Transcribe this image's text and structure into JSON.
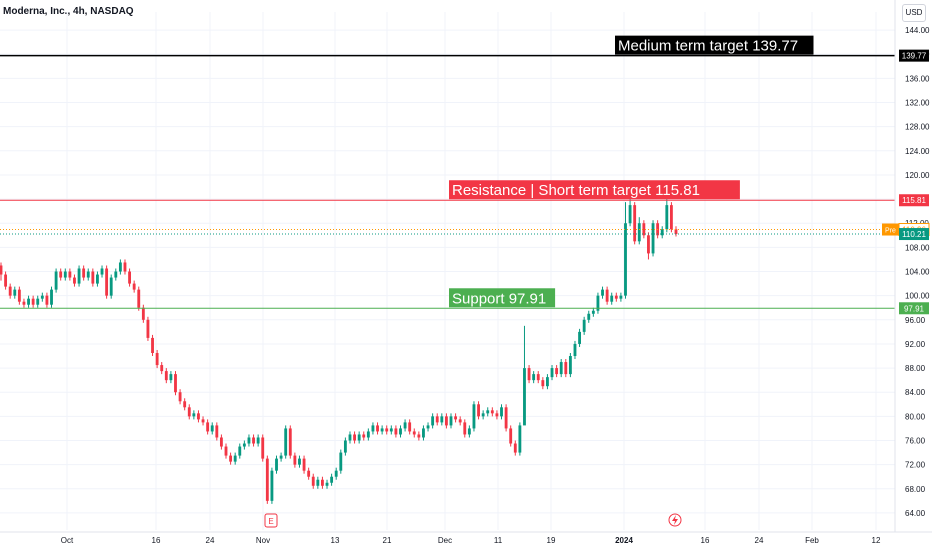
{
  "header": {
    "title": "Moderna, Inc., 4h, NASDAQ",
    "currency": "USD"
  },
  "colors": {
    "up": "#089981",
    "down": "#f23645",
    "resistance": "#f23645",
    "support": "#4caf50",
    "target": "#000000",
    "prepost": "#ff9800",
    "grid": "#f0f3fa"
  },
  "chart_data": {
    "type": "candlestick",
    "ylim": [
      62,
      147
    ],
    "y_ticks": [
      "144.00",
      "140.00",
      "136.00",
      "132.00",
      "128.00",
      "124.00",
      "120.00",
      "116.00",
      "112.00",
      "108.00",
      "104.00",
      "100.00",
      "96.00",
      "92.00",
      "88.00",
      "84.00",
      "80.00",
      "76.00",
      "72.00",
      "68.00",
      "64.00"
    ],
    "x_ticks": [
      "Oct",
      "16",
      "24",
      "Nov",
      "13",
      "21",
      "Dec",
      "11",
      "19",
      "2024",
      "16",
      "24",
      "Feb",
      "12"
    ],
    "levels": [
      {
        "name": "medium-target",
        "value": 139.77,
        "label": "Medium term target 139.77",
        "axis_label": "139.77"
      },
      {
        "name": "resistance",
        "value": 115.81,
        "label": "Resistance | Short term target 115.81",
        "axis_label": "115.81"
      },
      {
        "name": "support",
        "value": 97.91,
        "label": "Support 97.91",
        "axis_label": "97.91"
      }
    ],
    "last_price": {
      "value": 110.21,
      "label": "110.21"
    },
    "pre_price": {
      "value": 110.96,
      "label": "110.96",
      "tag": "Pre"
    },
    "candles": [
      [
        105,
        103.5,
        105.5,
        102.5
      ],
      [
        103.5,
        101.5,
        104,
        101
      ],
      [
        101.5,
        100,
        102,
        99.5
      ],
      [
        100,
        101,
        101.5,
        99.5
      ],
      [
        101,
        99,
        101.5,
        98.5
      ],
      [
        99,
        98.5,
        99.5,
        98
      ],
      [
        98.5,
        99.5,
        100,
        98
      ],
      [
        99.5,
        98.5,
        100,
        98
      ],
      [
        98.5,
        99.5,
        100,
        98
      ],
      [
        99.5,
        100,
        100.5,
        99
      ],
      [
        100,
        98.5,
        100.5,
        98
      ],
      [
        98.5,
        101,
        101.5,
        98
      ],
      [
        101,
        104,
        104.5,
        100.5
      ],
      [
        104,
        103,
        104.5,
        102.5
      ],
      [
        103,
        104,
        104.5,
        102.5
      ],
      [
        104,
        103,
        104.5,
        102.5
      ],
      [
        103,
        102,
        103.5,
        101.5
      ],
      [
        102,
        104.5,
        105,
        101.5
      ],
      [
        104.5,
        103,
        105,
        102.5
      ],
      [
        103,
        104,
        104.5,
        102.5
      ],
      [
        104,
        102,
        104.5,
        101.5
      ],
      [
        102,
        103.5,
        104,
        101.5
      ],
      [
        103.5,
        104.5,
        105,
        103
      ],
      [
        104.5,
        100,
        105,
        99.5
      ],
      [
        100,
        103,
        103.5,
        99.5
      ],
      [
        103,
        104,
        104.5,
        102.5
      ],
      [
        104,
        105.5,
        106,
        103.5
      ],
      [
        105.5,
        104,
        106,
        103.5
      ],
      [
        104,
        102,
        104.5,
        101.5
      ],
      [
        102,
        101,
        102.5,
        100.5
      ],
      [
        101,
        98,
        101.5,
        97.5
      ],
      [
        98,
        96,
        98.5,
        95.5
      ],
      [
        96,
        93,
        96.5,
        92.5
      ],
      [
        93,
        90.5,
        93.5,
        90
      ],
      [
        90.5,
        88.5,
        91,
        88
      ],
      [
        88.5,
        87.5,
        89,
        87
      ],
      [
        87.5,
        86,
        88,
        85.5
      ],
      [
        86,
        87,
        87.5,
        85.5
      ],
      [
        87,
        84,
        87.5,
        83.5
      ],
      [
        84,
        82.5,
        84.5,
        82
      ],
      [
        82.5,
        81.5,
        83,
        81
      ],
      [
        81.5,
        80,
        82,
        79.5
      ],
      [
        80,
        80.5,
        81,
        79.5
      ],
      [
        80.5,
        79.5,
        81,
        79
      ],
      [
        79.5,
        79,
        80,
        78.5
      ],
      [
        79,
        77.5,
        79.5,
        77
      ],
      [
        77.5,
        78.5,
        79,
        77
      ],
      [
        78.5,
        76.5,
        79,
        76
      ],
      [
        76.5,
        75,
        77,
        74.5
      ],
      [
        75,
        73.5,
        75.5,
        73
      ],
      [
        73.5,
        72.5,
        74,
        72
      ],
      [
        72.5,
        73.5,
        74,
        72
      ],
      [
        73.5,
        75,
        75.5,
        73
      ],
      [
        75,
        75.5,
        76,
        74.5
      ],
      [
        75.5,
        76.5,
        77,
        75
      ],
      [
        76.5,
        75.5,
        77,
        75
      ],
      [
        75.5,
        76.5,
        77,
        75
      ],
      [
        76.5,
        73,
        77,
        72.5
      ],
      [
        73,
        66,
        73.5,
        65.5
      ],
      [
        66,
        71,
        71.5,
        65.5
      ],
      [
        71,
        73,
        73.5,
        70.5
      ],
      [
        73,
        73.5,
        74,
        72.5
      ],
      [
        73.5,
        78,
        78.5,
        73
      ],
      [
        78,
        73.5,
        78.5,
        73
      ],
      [
        73.5,
        72,
        74,
        71.5
      ],
      [
        72,
        73,
        73.5,
        71.5
      ],
      [
        73,
        71,
        73.5,
        70.5
      ],
      [
        71,
        70,
        71.5,
        69.5
      ],
      [
        70,
        68.5,
        70.5,
        68
      ],
      [
        68.5,
        69.5,
        70,
        68
      ],
      [
        69.5,
        68.5,
        70,
        68
      ],
      [
        68.5,
        69,
        69.5,
        68
      ],
      [
        69,
        70,
        70.5,
        68.5
      ],
      [
        70,
        71,
        71.5,
        69.5
      ],
      [
        71,
        74,
        74.5,
        70.5
      ],
      [
        74,
        76,
        76.5,
        73.5
      ],
      [
        76,
        77,
        77.5,
        75.5
      ],
      [
        77,
        76,
        77.5,
        75.5
      ],
      [
        76,
        77,
        77.5,
        75.5
      ],
      [
        77,
        76.5,
        77.5,
        76
      ],
      [
        76.5,
        77.5,
        78,
        76
      ],
      [
        77.5,
        78.5,
        79,
        77
      ],
      [
        78.5,
        77.5,
        79,
        77
      ],
      [
        77.5,
        78,
        78.5,
        77
      ],
      [
        78,
        77.5,
        78.5,
        77
      ],
      [
        77.5,
        78,
        78.5,
        77
      ],
      [
        78,
        77,
        78.5,
        76.5
      ],
      [
        77,
        78,
        78.5,
        76.5
      ],
      [
        78,
        79,
        79.5,
        77.5
      ],
      [
        79,
        77.5,
        79.5,
        77
      ],
      [
        77.5,
        77,
        78,
        76.5
      ],
      [
        77,
        76.5,
        77.5,
        76
      ],
      [
        76.5,
        78,
        78.5,
        76
      ],
      [
        78,
        78.5,
        79,
        77.5
      ],
      [
        78.5,
        80,
        80.5,
        78
      ],
      [
        80,
        79,
        80.5,
        78.5
      ],
      [
        79,
        80,
        80.5,
        78.5
      ],
      [
        80,
        78.5,
        80.5,
        78
      ],
      [
        78.5,
        80,
        80.5,
        78
      ],
      [
        80,
        79.5,
        80.5,
        79
      ],
      [
        79.5,
        79,
        80,
        78.5
      ],
      [
        79,
        77,
        79.5,
        76.5
      ],
      [
        77,
        78,
        78.5,
        76.5
      ],
      [
        78,
        82,
        82.5,
        77.5
      ],
      [
        82,
        80,
        82.5,
        79.5
      ],
      [
        80,
        80.5,
        81,
        79.5
      ],
      [
        80.5,
        81,
        81.5,
        80
      ],
      [
        81,
        80.5,
        81.5,
        80
      ],
      [
        80.5,
        80,
        81,
        79.5
      ],
      [
        80,
        81.5,
        82,
        79.5
      ],
      [
        81.5,
        78,
        82,
        77.5
      ],
      [
        78,
        75.5,
        78.5,
        75
      ],
      [
        75.5,
        74,
        76,
        73.5
      ],
      [
        74,
        78.5,
        79,
        73.5
      ],
      [
        78.5,
        88,
        95,
        88
      ],
      [
        88,
        86,
        88.5,
        85.5
      ],
      [
        86,
        87,
        87.5,
        85.5
      ],
      [
        87,
        86,
        87.5,
        85.5
      ],
      [
        86,
        85,
        86.5,
        84.5
      ],
      [
        85,
        86.5,
        87,
        84.5
      ],
      [
        86.5,
        88,
        88.5,
        86
      ],
      [
        88,
        87,
        88.5,
        86.5
      ],
      [
        87,
        89,
        89.5,
        86.5
      ],
      [
        89,
        87,
        89.5,
        86.5
      ],
      [
        87,
        90,
        90.5,
        86.5
      ],
      [
        90,
        92,
        92.5,
        89.5
      ],
      [
        92,
        94,
        94.5,
        91.5
      ],
      [
        94,
        96,
        96.5,
        93.5
      ],
      [
        96,
        97,
        97.5,
        95.5
      ],
      [
        97,
        97.5,
        98,
        96.5
      ],
      [
        97.5,
        100,
        100.5,
        97
      ],
      [
        100,
        101,
        101.5,
        99.5
      ],
      [
        101,
        99,
        101.5,
        98.5
      ],
      [
        99,
        100,
        100.5,
        98.5
      ],
      [
        100,
        99.5,
        100.5,
        99
      ],
      [
        99.5,
        100,
        100.5,
        99
      ],
      [
        100,
        112,
        115.5,
        99.5
      ],
      [
        112,
        115,
        116,
        111.5
      ],
      [
        115,
        109,
        115.5,
        108.5
      ],
      [
        109,
        112,
        113,
        108.5
      ],
      [
        112,
        110,
        112.5,
        109.5
      ],
      [
        110,
        107,
        110.5,
        106
      ],
      [
        107,
        112,
        112.5,
        106.5
      ],
      [
        112,
        110,
        112.5,
        109.5
      ],
      [
        110,
        111,
        111.5,
        109.5
      ],
      [
        111,
        115,
        116,
        110.5
      ],
      [
        115,
        111,
        115.5,
        110.5
      ],
      [
        111,
        110.21,
        111.5,
        109.8
      ]
    ]
  }
}
